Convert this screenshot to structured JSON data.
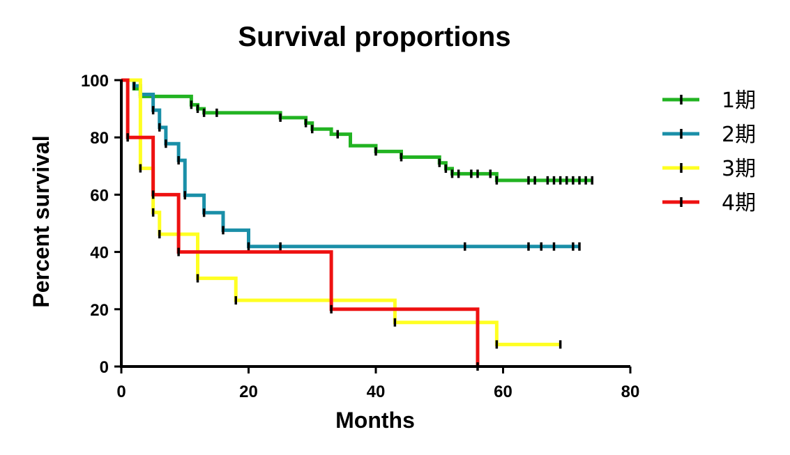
{
  "chart_data": {
    "type": "line",
    "title": "Survival proportions",
    "xlabel": "Months",
    "ylabel": "Percent survival",
    "xlim": [
      0,
      80
    ],
    "ylim": [
      0,
      100
    ],
    "xticks": [
      0,
      20,
      40,
      60,
      80
    ],
    "yticks": [
      0,
      20,
      40,
      60,
      80,
      100
    ],
    "legend_position": "right",
    "series": [
      {
        "name": "1期",
        "color": "#22b322",
        "steps": [
          [
            0,
            100
          ],
          [
            2,
            97
          ],
          [
            3,
            94.3
          ],
          [
            11,
            91.4
          ],
          [
            12,
            90
          ],
          [
            13,
            88.6
          ],
          [
            25,
            86.9
          ],
          [
            29,
            85
          ],
          [
            30,
            82.9
          ],
          [
            33,
            81.1
          ],
          [
            36,
            77.1
          ],
          [
            40,
            75.1
          ],
          [
            44,
            73.1
          ],
          [
            50,
            71.1
          ],
          [
            51,
            69.1
          ],
          [
            52,
            67.3
          ],
          [
            59,
            65.0
          ],
          [
            74,
            65.0
          ]
        ],
        "censored": [
          [
            3,
            94.3
          ],
          [
            11,
            91.4
          ],
          [
            12,
            90
          ],
          [
            13,
            88.6
          ],
          [
            15,
            88.6
          ],
          [
            25,
            86.9
          ],
          [
            29,
            85
          ],
          [
            30,
            82.9
          ],
          [
            34,
            81.1
          ],
          [
            40,
            75.1
          ],
          [
            44,
            73.1
          ],
          [
            50,
            71.1
          ],
          [
            51,
            69.1
          ],
          [
            52,
            67.3
          ],
          [
            53,
            67.3
          ],
          [
            55,
            67.3
          ],
          [
            56,
            67.3
          ],
          [
            58,
            67.3
          ],
          [
            59,
            65
          ],
          [
            64,
            65
          ],
          [
            65,
            65
          ],
          [
            67,
            65
          ],
          [
            68,
            65
          ],
          [
            69,
            65
          ],
          [
            70,
            65
          ],
          [
            71,
            65
          ],
          [
            72,
            65
          ],
          [
            73,
            65
          ],
          [
            74,
            65
          ]
        ]
      },
      {
        "name": "2期",
        "color": "#1a8fa8",
        "steps": [
          [
            0,
            100
          ],
          [
            2,
            98
          ],
          [
            3,
            95
          ],
          [
            5,
            89.5
          ],
          [
            6,
            83.5
          ],
          [
            7,
            77.8
          ],
          [
            9,
            72.0
          ],
          [
            10,
            59.8
          ],
          [
            13,
            53.7
          ],
          [
            16,
            47.6
          ],
          [
            20,
            41.9
          ],
          [
            72,
            41.9
          ]
        ],
        "censored": [
          [
            2,
            98
          ],
          [
            5,
            89.5
          ],
          [
            6,
            83.5
          ],
          [
            7,
            77.8
          ],
          [
            9,
            72
          ],
          [
            10,
            59.8
          ],
          [
            13,
            53.7
          ],
          [
            16,
            47.6
          ],
          [
            20,
            41.9
          ],
          [
            25,
            41.9
          ],
          [
            54,
            41.9
          ],
          [
            64,
            41.9
          ],
          [
            66,
            41.9
          ],
          [
            68,
            41.9
          ],
          [
            71,
            41.9
          ],
          [
            72,
            41.9
          ]
        ]
      },
      {
        "name": "3期",
        "color": "#ffff22",
        "steps": [
          [
            0,
            100
          ],
          [
            3,
            69.2
          ],
          [
            5,
            53.8
          ],
          [
            6,
            46.2
          ],
          [
            12,
            30.8
          ],
          [
            18,
            23.1
          ],
          [
            43,
            15.4
          ],
          [
            59,
            7.7
          ],
          [
            69,
            7.7
          ]
        ],
        "censored": [
          [
            3,
            69.2
          ],
          [
            5,
            53.8
          ],
          [
            6,
            46.2
          ],
          [
            12,
            30.8
          ],
          [
            18,
            23.1
          ],
          [
            43,
            15.4
          ],
          [
            59,
            7.7
          ],
          [
            69,
            7.7
          ]
        ]
      },
      {
        "name": "4期",
        "color": "#ee1111",
        "steps": [
          [
            0,
            100
          ],
          [
            1,
            80
          ],
          [
            5,
            60
          ],
          [
            9,
            40
          ],
          [
            33,
            20
          ],
          [
            56,
            0
          ]
        ],
        "censored": [
          [
            1,
            80
          ],
          [
            5,
            60
          ],
          [
            9,
            40
          ],
          [
            33,
            20
          ],
          [
            56,
            0
          ]
        ]
      }
    ]
  }
}
